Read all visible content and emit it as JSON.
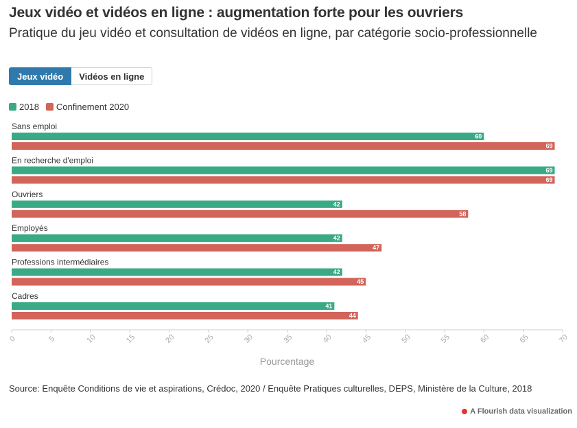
{
  "header": {
    "title": "Jeux vidéo et vidéos en ligne : augmentation forte pour les ouvriers",
    "subtitle": "Pratique du jeu vidéo et consultation de vidéos en ligne, par catégorie socio-professionnelle"
  },
  "tabs": [
    {
      "label": "Jeux vidéo",
      "active": true
    },
    {
      "label": "Vidéos en ligne",
      "active": false
    }
  ],
  "colors": {
    "accent": "#2f79ad",
    "series_2018": "#3aaa86",
    "series_2020": "#d2645a"
  },
  "chart_data": {
    "type": "bar",
    "orientation": "horizontal",
    "categories": [
      "Sans emploi",
      "En recherche d'emploi",
      "Ouvriers",
      "Employés",
      "Professions intermédiaires",
      "Cadres"
    ],
    "series": [
      {
        "name": "2018",
        "color": "#3aaa86",
        "values": [
          60,
          69,
          42,
          42,
          42,
          41
        ]
      },
      {
        "name": "Confinement 2020",
        "color": "#d2645a",
        "values": [
          69,
          69,
          58,
          47,
          45,
          44
        ]
      }
    ],
    "xlabel": "Pourcentage",
    "xlim": [
      0,
      70
    ],
    "xticks": [
      0,
      5,
      10,
      15,
      20,
      25,
      30,
      35,
      40,
      45,
      50,
      55,
      60,
      65,
      70
    ],
    "legend_position": "top-left",
    "grid": false
  },
  "footer": {
    "source": "Source: Enquête Conditions de vie et aspirations, Crédoc, 2020 / Enquête Pratiques culturelles, DEPS, Ministère de la Culture, 2018",
    "credit": "A Flourish data visualization"
  }
}
